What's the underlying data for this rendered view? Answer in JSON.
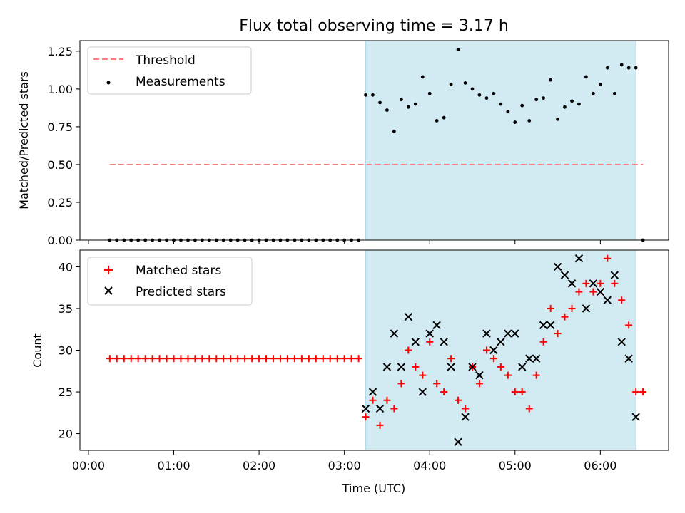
{
  "chart_data": [
    {
      "type": "scatter",
      "title": "Flux total observing time = 3.17 h",
      "ylabel": "Matched/Predicted stars",
      "xlabel": "",
      "ylim": [
        0,
        1.32
      ],
      "yticks": [
        "0.00",
        "0.25",
        "0.50",
        "0.75",
        "1.00",
        "1.25"
      ],
      "ytick_values": [
        0,
        0.25,
        0.5,
        0.75,
        1.0,
        1.25
      ],
      "legend_position": "top-left",
      "shaded_interval": {
        "from_hours": 3.25,
        "to_hours": 6.417,
        "color": "#add8e6"
      },
      "threshold": {
        "name": "Threshold",
        "value": 0.5,
        "from_hours": 0.25,
        "to_hours": 6.5,
        "color": "#ff7f7f"
      },
      "series": [
        {
          "name": "Measurements",
          "color": "#000000",
          "x_hours": [
            0.25,
            0.333,
            0.417,
            0.5,
            0.583,
            0.667,
            0.75,
            0.833,
            0.917,
            1.0,
            1.083,
            1.167,
            1.25,
            1.333,
            1.417,
            1.5,
            1.583,
            1.667,
            1.75,
            1.833,
            1.917,
            2.0,
            2.083,
            2.167,
            2.25,
            2.333,
            2.417,
            2.5,
            2.583,
            2.667,
            2.75,
            2.833,
            2.917,
            3.0,
            3.083,
            3.167,
            3.25,
            3.333,
            3.417,
            3.5,
            3.583,
            3.667,
            3.75,
            3.833,
            3.917,
            4.0,
            4.083,
            4.167,
            4.25,
            4.333,
            4.417,
            4.5,
            4.583,
            4.667,
            4.75,
            4.833,
            4.917,
            5.0,
            5.083,
            5.167,
            5.25,
            5.333,
            5.417,
            5.5,
            5.583,
            5.667,
            5.75,
            5.833,
            5.917,
            6.0,
            6.083,
            6.167,
            6.25,
            6.333,
            6.417,
            6.5
          ],
          "values": [
            0,
            0,
            0,
            0,
            0,
            0,
            0,
            0,
            0,
            0,
            0,
            0,
            0,
            0,
            0,
            0,
            0,
            0,
            0,
            0,
            0,
            0,
            0,
            0,
            0,
            0,
            0,
            0,
            0,
            0,
            0,
            0,
            0,
            0,
            0,
            0,
            0.96,
            0.96,
            0.91,
            0.86,
            0.72,
            0.93,
            0.88,
            0.9,
            1.08,
            0.97,
            0.79,
            0.81,
            1.03,
            1.26,
            1.04,
            1.0,
            0.96,
            0.94,
            0.97,
            0.9,
            0.85,
            0.78,
            0.89,
            0.79,
            0.93,
            0.94,
            1.06,
            0.8,
            0.88,
            0.92,
            0.9,
            1.08,
            0.97,
            1.03,
            1.14,
            0.97,
            1.16,
            1.14,
            1.14,
            0
          ]
        }
      ]
    },
    {
      "type": "scatter",
      "title": "",
      "ylabel": "Count",
      "xlabel": "Time (UTC)",
      "ylim": [
        18,
        42
      ],
      "yticks": [
        "20",
        "25",
        "30",
        "35",
        "40"
      ],
      "ytick_values": [
        20,
        25,
        30,
        35,
        40
      ],
      "xlim_hours": [
        -0.1,
        6.8
      ],
      "xticks": [
        "00:00",
        "01:00",
        "02:00",
        "03:00",
        "04:00",
        "05:00",
        "06:00"
      ],
      "xtick_values_hours": [
        0,
        1,
        2,
        3,
        4,
        5,
        6
      ],
      "legend_position": "top-left",
      "shaded_interval": {
        "from_hours": 3.25,
        "to_hours": 6.417,
        "color": "#add8e6"
      },
      "series": [
        {
          "name": "Matched stars",
          "marker": "plus",
          "color": "#ff0000",
          "x_hours": [
            0.25,
            0.333,
            0.417,
            0.5,
            0.583,
            0.667,
            0.75,
            0.833,
            0.917,
            1.0,
            1.083,
            1.167,
            1.25,
            1.333,
            1.417,
            1.5,
            1.583,
            1.667,
            1.75,
            1.833,
            1.917,
            2.0,
            2.083,
            2.167,
            2.25,
            2.333,
            2.417,
            2.5,
            2.583,
            2.667,
            2.75,
            2.833,
            2.917,
            3.0,
            3.083,
            3.167,
            3.25,
            3.333,
            3.417,
            3.5,
            3.583,
            3.667,
            3.75,
            3.833,
            3.917,
            4.0,
            4.083,
            4.167,
            4.25,
            4.333,
            4.417,
            4.5,
            4.583,
            4.667,
            4.75,
            4.833,
            4.917,
            5.0,
            5.083,
            5.167,
            5.25,
            5.333,
            5.417,
            5.5,
            5.583,
            5.667,
            5.75,
            5.833,
            5.917,
            6.0,
            6.083,
            6.167,
            6.25,
            6.333,
            6.417,
            6.5
          ],
          "values": [
            29,
            29,
            29,
            29,
            29,
            29,
            29,
            29,
            29,
            29,
            29,
            29,
            29,
            29,
            29,
            29,
            29,
            29,
            29,
            29,
            29,
            29,
            29,
            29,
            29,
            29,
            29,
            29,
            29,
            29,
            29,
            29,
            29,
            29,
            29,
            29,
            22,
            24,
            21,
            24,
            23,
            26,
            30,
            28,
            27,
            31,
            26,
            25,
            29,
            24,
            23,
            28,
            26,
            30,
            29,
            28,
            27,
            25,
            25,
            23,
            27,
            31,
            35,
            32,
            34,
            35,
            37,
            38,
            37,
            38,
            41,
            38,
            36,
            33,
            25,
            25
          ]
        },
        {
          "name": "Predicted stars",
          "marker": "x",
          "color": "#000000",
          "x_hours": [
            3.25,
            3.333,
            3.417,
            3.5,
            3.583,
            3.667,
            3.75,
            3.833,
            3.917,
            4.0,
            4.083,
            4.167,
            4.25,
            4.333,
            4.417,
            4.5,
            4.583,
            4.667,
            4.75,
            4.833,
            4.917,
            5.0,
            5.083,
            5.167,
            5.25,
            5.333,
            5.417,
            5.5,
            5.583,
            5.667,
            5.75,
            5.833,
            5.917,
            6.0,
            6.083,
            6.167,
            6.25,
            6.333,
            6.417
          ],
          "values": [
            23,
            25,
            23,
            28,
            32,
            28,
            34,
            31,
            25,
            32,
            33,
            31,
            28,
            19,
            22,
            28,
            27,
            32,
            30,
            31,
            32,
            32,
            28,
            29,
            29,
            33,
            33,
            40,
            39,
            38,
            41,
            35,
            38,
            37,
            36,
            39,
            31,
            29,
            22
          ]
        }
      ]
    }
  ]
}
